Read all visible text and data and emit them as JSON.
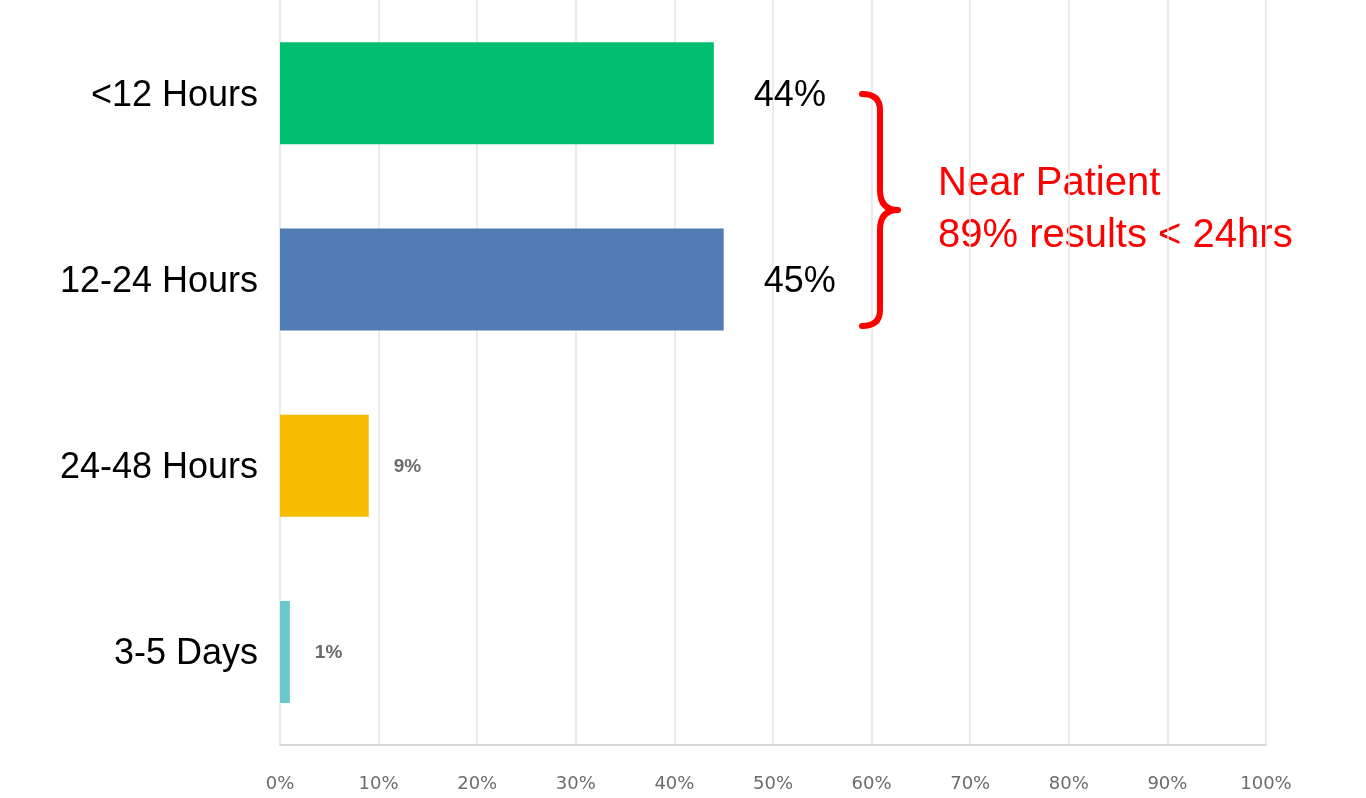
{
  "chart_data": {
    "type": "bar",
    "orientation": "horizontal",
    "categories": [
      "<12 Hours",
      "12-24 Hours",
      "24-48 Hours",
      "3-5 Days"
    ],
    "values": [
      44,
      45,
      9,
      1
    ],
    "colors": [
      "#00bf6f",
      "#507cb6",
      "#f7bc00",
      "#6bc8cd"
    ],
    "value_labels": [
      "44%",
      "45%",
      "9%",
      "1%"
    ],
    "xlim": [
      0,
      100
    ],
    "xticks": [
      {
        "value": 0,
        "label": "0%"
      },
      {
        "value": 10,
        "label": "10%"
      },
      {
        "value": 20,
        "label": "20%"
      },
      {
        "value": 30,
        "label": "30%"
      },
      {
        "value": 40,
        "label": "40%"
      },
      {
        "value": 50,
        "label": "50%"
      },
      {
        "value": 60,
        "label": "60%"
      },
      {
        "value": 70,
        "label": "70%"
      },
      {
        "value": 80,
        "label": "80%"
      },
      {
        "value": 90,
        "label": "90%"
      },
      {
        "value": 100,
        "label": "100%"
      }
    ],
    "grid": "x",
    "annotations": [
      "Near Patient\n89% results < 24hrs"
    ]
  }
}
